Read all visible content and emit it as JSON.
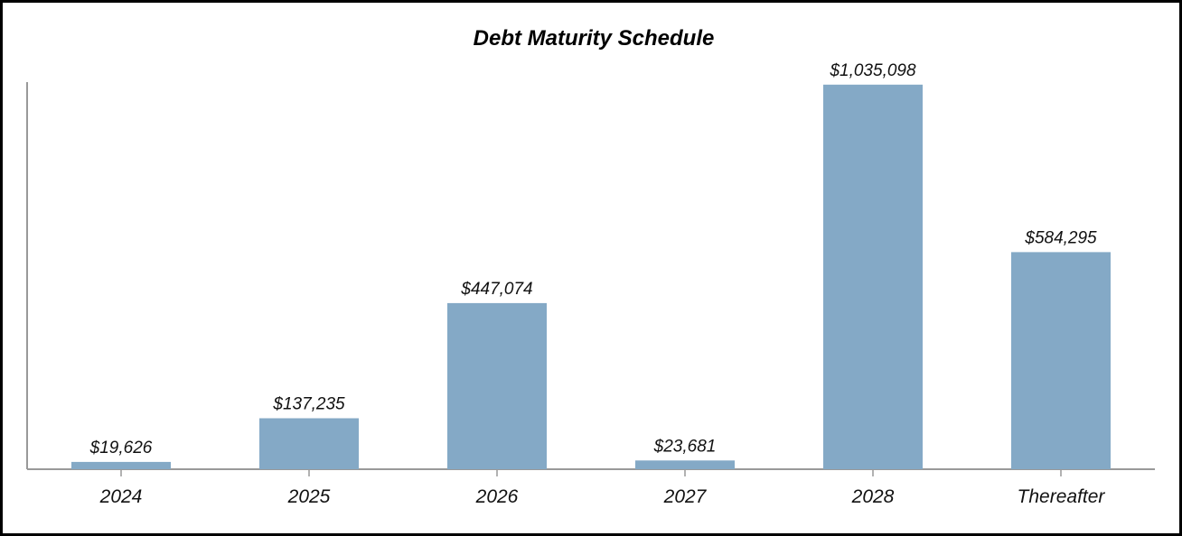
{
  "chart_data": {
    "type": "bar",
    "title": "Debt Maturity Schedule",
    "categories": [
      "2024",
      "2025",
      "2026",
      "2027",
      "2028",
      "Thereafter"
    ],
    "values": [
      19626,
      137235,
      447074,
      23681,
      1035098,
      584295
    ],
    "data_labels": [
      "$19,626",
      "$137,235",
      "$447,074",
      "$23,681",
      "$1,035,098",
      "$584,295"
    ],
    "xlabel": "",
    "ylabel": "",
    "ylim": [
      0,
      1110000
    ],
    "grid": false,
    "legend": "none",
    "bar_color": "#84a9c6",
    "axis_color": "#999999"
  }
}
